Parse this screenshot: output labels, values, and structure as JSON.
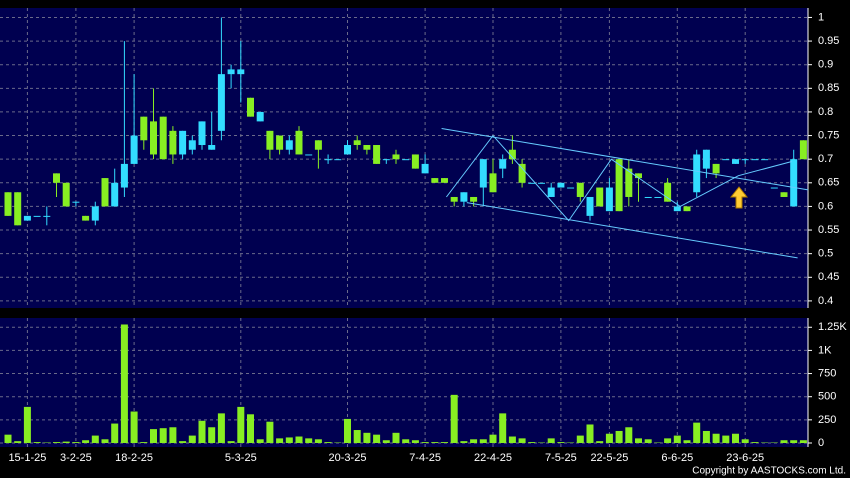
{
  "chart_data": {
    "type": "candlestick",
    "categories": [
      null,
      null,
      "15-1-25",
      null,
      null,
      null,
      null,
      "3-2-25",
      null,
      null,
      null,
      null,
      null,
      "18-2-25",
      null,
      null,
      null,
      null,
      null,
      null,
      null,
      null,
      null,
      null,
      "5-3-25",
      null,
      null,
      null,
      null,
      null,
      null,
      null,
      null,
      null,
      null,
      "20-3-25",
      null,
      null,
      null,
      null,
      null,
      null,
      null,
      "7-4-25",
      null,
      null,
      null,
      null,
      null,
      null,
      "22-4-25",
      null,
      null,
      null,
      null,
      null,
      null,
      "7-5-25",
      null,
      null,
      null,
      null,
      "22-5-25",
      null,
      null,
      null,
      null,
      null,
      null,
      "6-6-25",
      null,
      null,
      null,
      null,
      null,
      null,
      "23-6-25",
      null,
      null,
      null,
      null,
      null,
      null
    ],
    "open": [
      0.63,
      0.63,
      0.57,
      0.58,
      0.58,
      0.67,
      0.65,
      0.61,
      0.58,
      0.57,
      0.66,
      0.6,
      0.64,
      0.69,
      0.79,
      0.78,
      0.79,
      0.76,
      0.71,
      0.72,
      0.73,
      0.72,
      0.76,
      0.88,
      0.88,
      0.83,
      0.78,
      0.76,
      0.75,
      0.72,
      0.76,
      0.71,
      0.74,
      0.7,
      0.7,
      0.71,
      0.74,
      0.73,
      0.73,
      0.7,
      0.71,
      0.7,
      0.71,
      0.67,
      0.66,
      0.66,
      0.62,
      0.61,
      0.62,
      0.64,
      0.67,
      0.68,
      0.72,
      0.69,
      0.65,
      0.65,
      0.62,
      0.64,
      0.64,
      0.65,
      0.58,
      0.64,
      0.59,
      0.7,
      0.68,
      0.67,
      0.62,
      0.62,
      0.65,
      0.59,
      0.6,
      0.63,
      0.68,
      0.69,
      0.7,
      0.69,
      0.7,
      0.7,
      0.7,
      0.64,
      0.63,
      0.6,
      0.74
    ],
    "high": [
      0.63,
      0.63,
      0.58,
      0.58,
      0.6,
      0.67,
      0.65,
      0.61,
      0.58,
      0.61,
      0.66,
      0.68,
      0.95,
      0.88,
      0.79,
      0.85,
      0.79,
      0.77,
      0.76,
      0.75,
      0.78,
      0.8,
      1.0,
      0.9,
      0.95,
      0.83,
      0.8,
      0.76,
      0.75,
      0.75,
      0.77,
      0.71,
      0.74,
      0.71,
      0.7,
      0.74,
      0.75,
      0.73,
      0.73,
      0.7,
      0.72,
      0.7,
      0.71,
      0.71,
      0.66,
      0.66,
      0.62,
      0.63,
      0.62,
      0.7,
      0.7,
      0.71,
      0.75,
      0.7,
      0.65,
      0.65,
      0.65,
      0.65,
      0.64,
      0.65,
      0.62,
      0.64,
      0.66,
      0.7,
      0.7,
      0.67,
      0.62,
      0.62,
      0.66,
      0.61,
      0.6,
      0.72,
      0.72,
      0.69,
      0.7,
      0.7,
      0.7,
      0.7,
      0.7,
      0.64,
      0.63,
      0.72,
      0.74
    ],
    "low": [
      0.58,
      0.56,
      0.57,
      0.58,
      0.56,
      0.62,
      0.6,
      0.6,
      0.57,
      0.56,
      0.6,
      0.6,
      0.62,
      0.69,
      0.72,
      0.7,
      0.7,
      0.69,
      0.7,
      0.71,
      0.72,
      0.72,
      0.74,
      0.85,
      0.82,
      0.79,
      0.78,
      0.7,
      0.71,
      0.71,
      0.71,
      0.71,
      0.68,
      0.69,
      0.7,
      0.71,
      0.72,
      0.71,
      0.69,
      0.69,
      0.69,
      0.7,
      0.68,
      0.67,
      0.65,
      0.65,
      0.6,
      0.6,
      0.6,
      0.6,
      0.63,
      0.66,
      0.69,
      0.64,
      0.65,
      0.65,
      0.62,
      0.64,
      0.64,
      0.61,
      0.57,
      0.6,
      0.59,
      0.59,
      0.6,
      0.61,
      0.62,
      0.62,
      0.61,
      0.59,
      0.59,
      0.62,
      0.66,
      0.66,
      0.7,
      0.69,
      0.69,
      0.7,
      0.7,
      0.64,
      0.62,
      0.6,
      0.7
    ],
    "close": [
      0.58,
      0.56,
      0.58,
      0.58,
      0.58,
      0.65,
      0.6,
      0.61,
      0.57,
      0.6,
      0.6,
      0.65,
      0.69,
      0.75,
      0.74,
      0.71,
      0.7,
      0.71,
      0.76,
      0.74,
      0.78,
      0.73,
      0.88,
      0.89,
      0.89,
      0.79,
      0.8,
      0.72,
      0.72,
      0.74,
      0.71,
      0.71,
      0.72,
      0.7,
      0.7,
      0.73,
      0.73,
      0.72,
      0.69,
      0.7,
      0.7,
      0.7,
      0.68,
      0.69,
      0.65,
      0.65,
      0.61,
      0.63,
      0.61,
      0.7,
      0.63,
      0.7,
      0.7,
      0.65,
      0.65,
      0.65,
      0.64,
      0.65,
      0.64,
      0.62,
      0.62,
      0.6,
      0.64,
      0.59,
      0.62,
      0.66,
      0.62,
      0.62,
      0.61,
      0.6,
      0.59,
      0.71,
      0.72,
      0.67,
      0.7,
      0.7,
      0.7,
      0.7,
      0.7,
      0.64,
      0.62,
      0.7,
      0.7
    ],
    "volume": [
      90,
      20,
      390,
      10,
      5,
      10,
      15,
      10,
      30,
      80,
      40,
      210,
      1280,
      340,
      10,
      150,
      160,
      170,
      20,
      80,
      240,
      170,
      320,
      20,
      390,
      310,
      40,
      230,
      50,
      60,
      70,
      50,
      40,
      10,
      5,
      260,
      140,
      110,
      90,
      30,
      110,
      40,
      30,
      10,
      10,
      10,
      520,
      20,
      40,
      40,
      90,
      320,
      70,
      50,
      10,
      5,
      50,
      10,
      5,
      80,
      200,
      20,
      100,
      130,
      170,
      50,
      40,
      5,
      50,
      80,
      30,
      220,
      130,
      100,
      80,
      100,
      40,
      10,
      5,
      5,
      30,
      30,
      30
    ],
    "up_color": "#33ddff",
    "down_color": "#88ee22",
    "volume_color": "#88ee22",
    "ylim": [
      0.385,
      1.02
    ],
    "yticks": [
      1,
      0.95,
      0.9,
      0.85,
      0.8,
      0.75,
      0.7,
      0.65,
      0.6,
      0.55,
      0.5,
      0.45,
      0.4
    ],
    "volume_ylim": [
      0,
      1350
    ],
    "volume_ticks": [
      0,
      250,
      500,
      750,
      {
        "value": 1000,
        "label": "1K"
      },
      {
        "value": 1250,
        "label": "1.25K"
      }
    ],
    "grid": true,
    "trendlines": [
      {
        "color": "#66ccff",
        "x": [
          44.7,
          82.5
        ],
        "y": [
          0.765,
          0.635
        ]
      },
      {
        "color": "#66ccff",
        "x": [
          47.3,
          81.4
        ],
        "y": [
          0.608,
          0.491
        ]
      },
      {
        "color": "#66ccff",
        "x": [
          45.2,
          50,
          57.8,
          62.2,
          69.3,
          75.3,
          80.8
        ],
        "y": [
          0.62,
          0.75,
          0.57,
          0.7,
          0.6,
          0.665,
          0.695
        ]
      }
    ],
    "copyright": "Copyright by AASTOCKS.com Ltd."
  }
}
